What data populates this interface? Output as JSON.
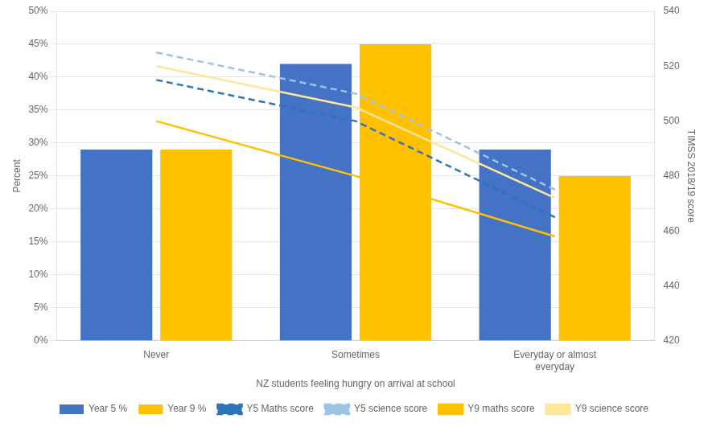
{
  "chart_data": {
    "type": "bar",
    "categories": [
      "Never",
      "Sometimes",
      "Everyday or almost\neveryday"
    ],
    "series": [
      {
        "name": "Year 5 %",
        "type": "bar",
        "color": "#4472C4",
        "values": [
          29,
          42,
          29
        ]
      },
      {
        "name": "Year 9 %",
        "type": "bar",
        "color": "#FFC000",
        "values": [
          29,
          45,
          25
        ]
      },
      {
        "name": "Y5 Maths score",
        "type": "line",
        "axis": "y2",
        "line_style": "dashed",
        "color": "#2E75B6",
        "values": [
          515,
          500,
          465
        ]
      },
      {
        "name": "Y5 science score",
        "type": "line",
        "axis": "y2",
        "line_style": "dashed",
        "color": "#9DC3E6",
        "values": [
          525,
          510,
          475
        ]
      },
      {
        "name": "Y9 maths score",
        "type": "line",
        "axis": "y2",
        "line_style": "solid",
        "color": "#FFC000",
        "values": [
          500,
          480,
          458
        ]
      },
      {
        "name": "Y9 science score",
        "type": "line",
        "axis": "y2",
        "line_style": "solid",
        "color": "#FFE699",
        "values": [
          520,
          505,
          472
        ]
      }
    ],
    "xlabel": "NZ students feeling hungry on arrival at school",
    "ylabel": "Percent",
    "y2label": "TIMSS 2018/19 score",
    "ylim": [
      0,
      50
    ],
    "yticks": [
      {
        "value": 0,
        "label": "0%"
      },
      {
        "value": 5,
        "label": "5%"
      },
      {
        "value": 10,
        "label": "10%"
      },
      {
        "value": 15,
        "label": "15%"
      },
      {
        "value": 20,
        "label": "20%"
      },
      {
        "value": 25,
        "label": "25%"
      },
      {
        "value": 30,
        "label": "30%"
      },
      {
        "value": 35,
        "label": "35%"
      },
      {
        "value": 40,
        "label": "40%"
      },
      {
        "value": 45,
        "label": "45%"
      },
      {
        "value": 50,
        "label": "50%"
      }
    ],
    "y2lim": [
      420,
      540
    ],
    "y2ticks": [
      420,
      440,
      460,
      480,
      500,
      520,
      540
    ],
    "grid": true,
    "legend": "bottom"
  }
}
